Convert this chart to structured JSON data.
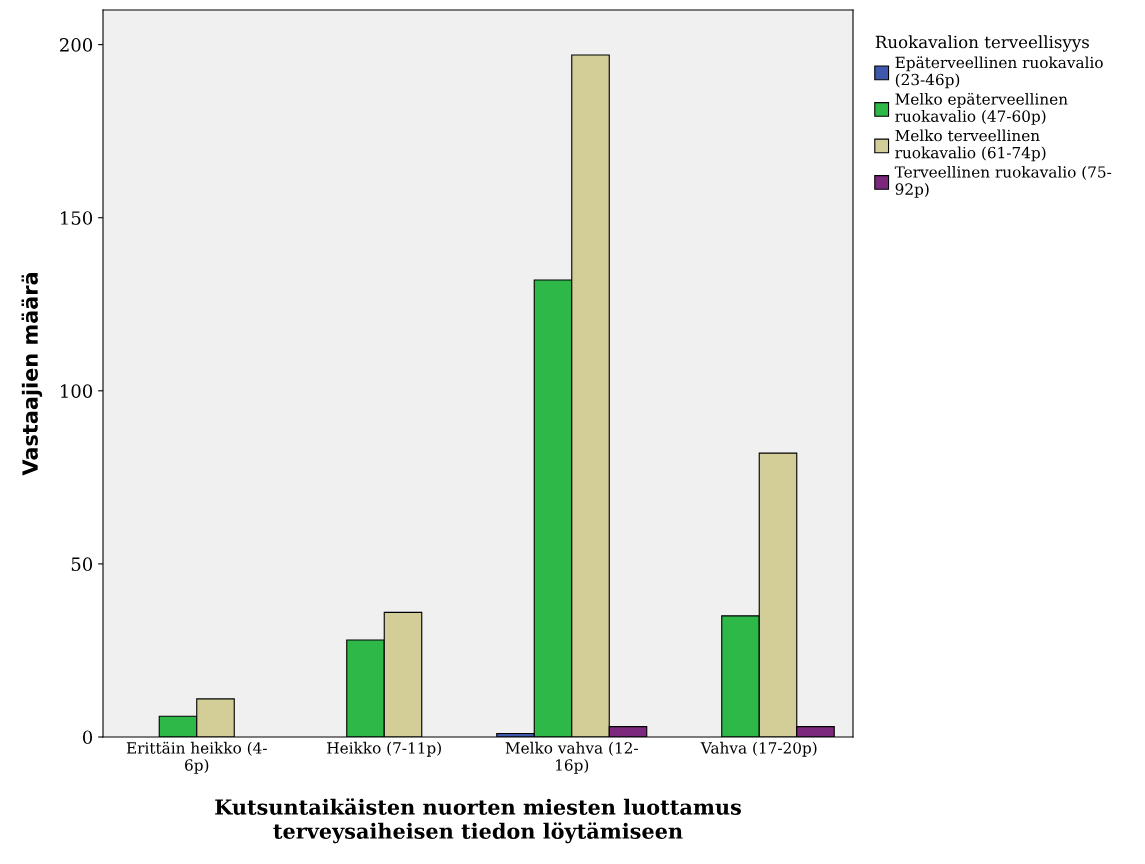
{
  "chart_data": {
    "type": "bar",
    "xlabel": "Kutsuntaikäisten nuorten miesten luottamus\nterveysaiheisen tiedon löytämiseen",
    "ylabel": "Vastaajien määrä",
    "legend_title": "Ruokavalion terveellisyys",
    "categories": [
      "Erittäin heikko (4-\n6p)",
      "Heikko (7-11p)",
      "Melko vahva (12-\n16p)",
      "Vahva (17-20p)"
    ],
    "series": [
      {
        "name": "Epäterveellinen ruokavalio\n(23-46p)",
        "color": "#3e58ac",
        "values": [
          null,
          null,
          1,
          null
        ]
      },
      {
        "name": "Melko epäterveellinen\nruokavalio (47-60p)",
        "color": "#2eb848",
        "values": [
          6,
          28,
          132,
          35
        ]
      },
      {
        "name": "Melko terveellinen\nruokavalio (61-74p)",
        "color": "#d3ce97",
        "values": [
          11,
          36,
          197,
          82
        ]
      },
      {
        "name": "Terveellinen ruokavalio (75-\n92p)",
        "color": "#7c287d",
        "values": [
          null,
          null,
          3,
          3
        ]
      }
    ],
    "ylim": [
      0,
      210
    ],
    "yticks": [
      0,
      50,
      100,
      150,
      200
    ],
    "legend": "top right",
    "grid": false
  }
}
